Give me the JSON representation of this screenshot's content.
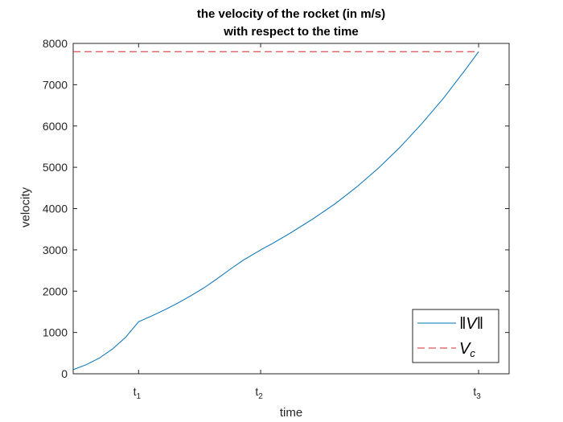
{
  "chart_data": {
    "type": "line",
    "title": [
      "the velocity of the rocket (in m/s)",
      "with respect to the time"
    ],
    "xlabel": "time",
    "ylabel": "velocity",
    "xlim": [
      0,
      1
    ],
    "ylim": [
      0,
      8000
    ],
    "x_ticks": [
      {
        "value": 0.15,
        "label": "t",
        "sub": "1"
      },
      {
        "value": 0.43,
        "label": "t",
        "sub": "2"
      },
      {
        "value": 0.93,
        "label": "t",
        "sub": "3"
      }
    ],
    "y_ticks": [
      0,
      1000,
      2000,
      3000,
      4000,
      5000,
      6000,
      7000,
      8000
    ],
    "grid": false,
    "legend_position": "bottom-right",
    "series": [
      {
        "name": "‖V‖",
        "style": "solid",
        "color": "#0072bd",
        "x": [
          0,
          0.03,
          0.06,
          0.09,
          0.12,
          0.15,
          0.18,
          0.21,
          0.24,
          0.27,
          0.3,
          0.33,
          0.36,
          0.39,
          0.43,
          0.46,
          0.5,
          0.55,
          0.6,
          0.65,
          0.7,
          0.75,
          0.8,
          0.85,
          0.9,
          0.93
        ],
        "y": [
          100,
          220,
          380,
          600,
          880,
          1260,
          1400,
          1550,
          1710,
          1890,
          2080,
          2300,
          2530,
          2750,
          3000,
          3170,
          3420,
          3750,
          4110,
          4520,
          4980,
          5490,
          6060,
          6680,
          7370,
          7800
        ]
      },
      {
        "name": "V",
        "name_sub": "c",
        "style": "dashed",
        "color": "#d62728",
        "x": [
          0,
          0.93
        ],
        "y": [
          7800,
          7800
        ]
      }
    ]
  }
}
